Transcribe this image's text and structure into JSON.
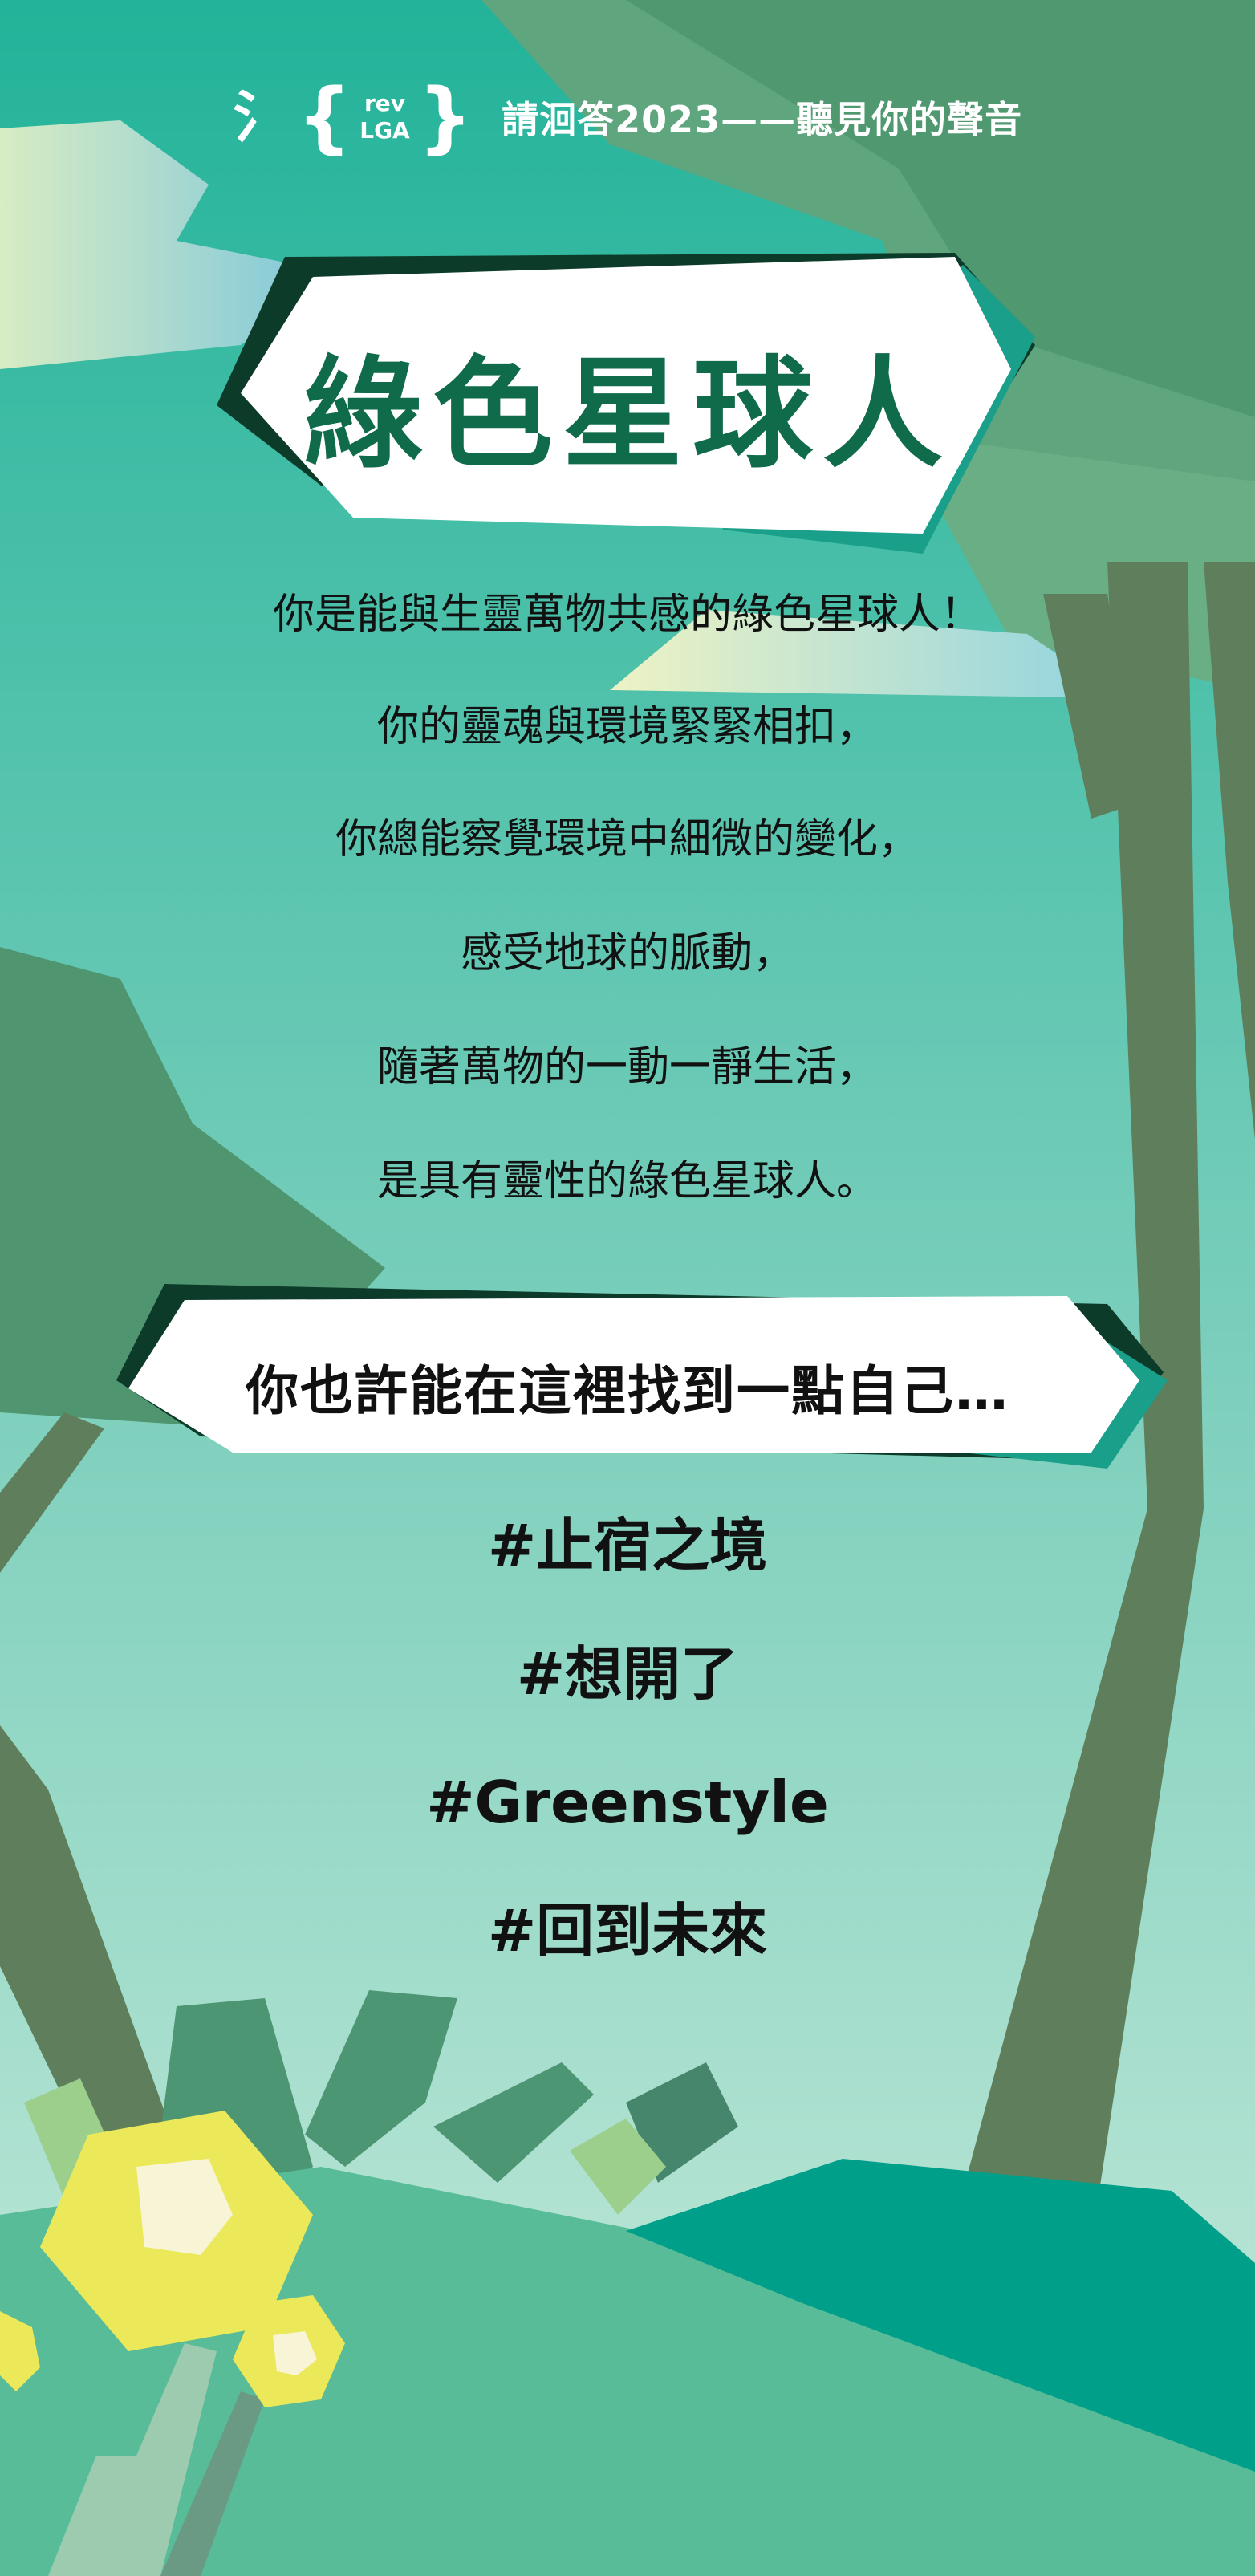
{
  "header": {
    "logo": {
      "glyph": "氵",
      "top": "rev",
      "bottom": "LGA"
    },
    "title": "請洄答2023——聽見你的聲音"
  },
  "title": "綠色星球人",
  "body_lines": [
    "你是能與生靈萬物共感的綠色星球人！",
    "你的靈魂與環境緊緊相扣，",
    "你總能察覺環境中細微的變化，",
    "感受地球的脈動，",
    "隨著萬物的一動一靜生活，",
    "是具有靈性的綠色星球人。"
  ],
  "subtitle": "你也許能在這裡找到一點自己…",
  "tags": [
    "#止宿之境",
    "#想開了",
    "#Greenstyle",
    "#回到未來"
  ],
  "colors": {
    "bg_top": "#22b39a",
    "bg_bottom": "#c8eadb",
    "title_green": "#0f6b4a",
    "dark_banner": "#0d3b2a",
    "tree_trunk": "#5f7f5c",
    "teal_hill": "#009f8a",
    "flower_yellow": "#ebe95a"
  }
}
